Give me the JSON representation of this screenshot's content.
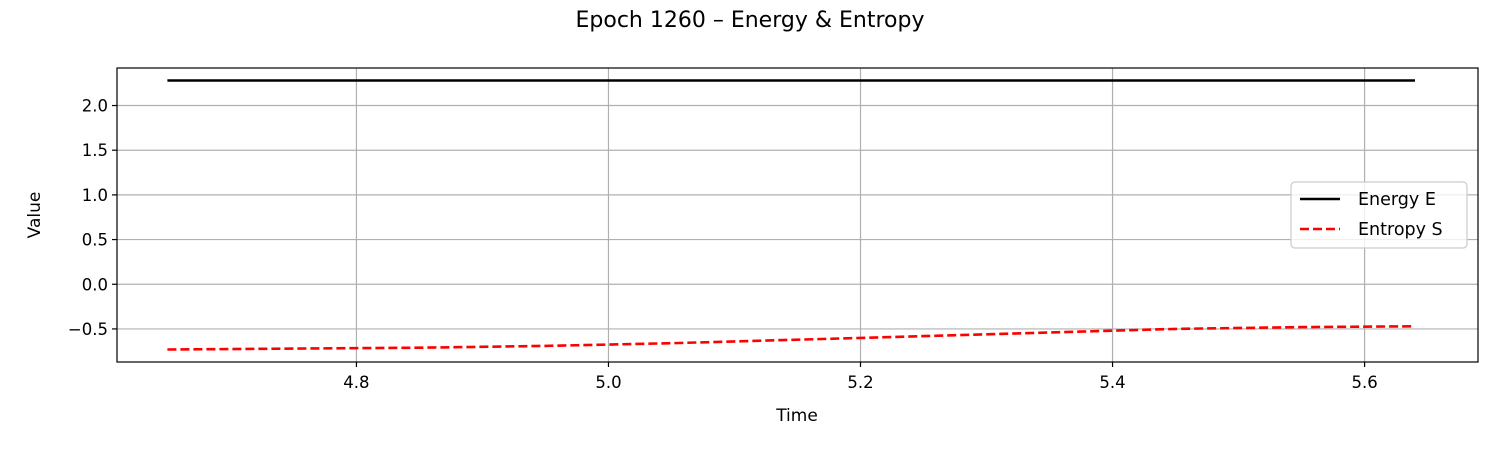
{
  "chart_data": {
    "type": "line",
    "title": "Epoch 1260 – Energy & Entropy",
    "xlabel": "Time",
    "ylabel": "Value",
    "xlim": [
      4.61,
      5.69
    ],
    "ylim": [
      -0.87,
      2.42
    ],
    "xticks": [
      4.8,
      5.0,
      5.2,
      5.4,
      5.6
    ],
    "xtick_labels": [
      "4.8",
      "5.0",
      "5.2",
      "5.4",
      "5.6"
    ],
    "yticks": [
      -0.5,
      0.0,
      0.5,
      1.0,
      1.5,
      2.0
    ],
    "ytick_labels": [
      "−0.5",
      "0.0",
      "0.5",
      "1.0",
      "1.5",
      "2.0"
    ],
    "grid": true,
    "legend_position": "center-right",
    "series": [
      {
        "name": "Energy E",
        "color": "#000000",
        "style": "solid",
        "x": [
          4.65,
          4.85,
          5.05,
          5.25,
          5.45,
          5.64
        ],
        "y": [
          2.28,
          2.28,
          2.28,
          2.28,
          2.28,
          2.28
        ]
      },
      {
        "name": "Entropy S",
        "color": "#ff0000",
        "style": "dashed",
        "x": [
          4.65,
          4.75,
          4.85,
          4.95,
          5.05,
          5.15,
          5.25,
          5.35,
          5.45,
          5.55,
          5.64
        ],
        "y": [
          -0.73,
          -0.72,
          -0.71,
          -0.69,
          -0.66,
          -0.62,
          -0.58,
          -0.54,
          -0.5,
          -0.48,
          -0.47
        ]
      }
    ]
  }
}
